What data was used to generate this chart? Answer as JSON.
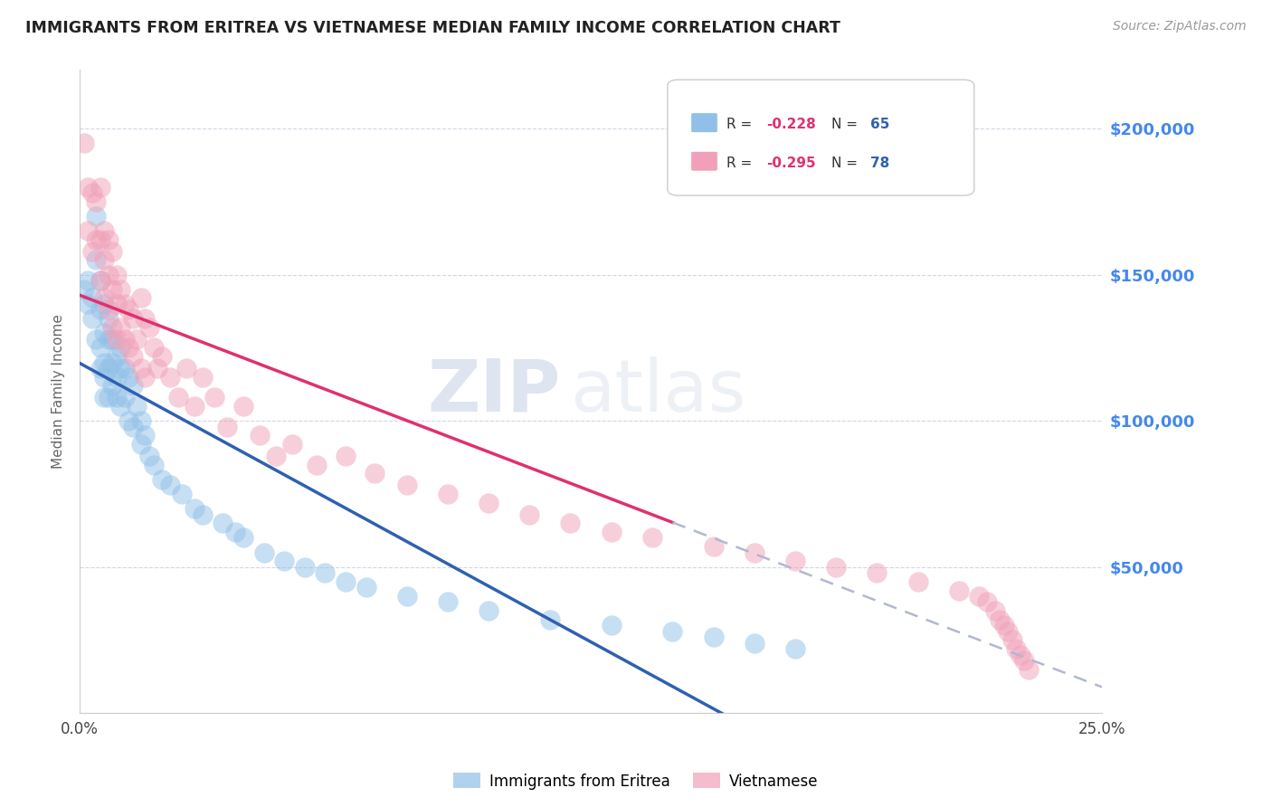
{
  "title": "IMMIGRANTS FROM ERITREA VS VIETNAMESE MEDIAN FAMILY INCOME CORRELATION CHART",
  "source": "Source: ZipAtlas.com",
  "ylabel": "Median Family Income",
  "right_yticklabels": [
    "",
    "$50,000",
    "$100,000",
    "$150,000",
    "$200,000"
  ],
  "legend_label1": "Immigrants from Eritrea",
  "legend_label2": "Vietnamese",
  "color_eritrea": "#90c0e8",
  "color_vietnamese": "#f0a0b8",
  "line_color_eritrea": "#3060b0",
  "line_color_vietnamese": "#e03070",
  "line_color_dashed": "#b0b8d0",
  "watermark_zip": "ZIP",
  "watermark_atlas": "atlas",
  "xlim": [
    0.0,
    0.25
  ],
  "ylim": [
    0,
    220000
  ],
  "eritrea_x": [
    0.001,
    0.002,
    0.002,
    0.003,
    0.003,
    0.004,
    0.004,
    0.004,
    0.005,
    0.005,
    0.005,
    0.005,
    0.006,
    0.006,
    0.006,
    0.006,
    0.006,
    0.007,
    0.007,
    0.007,
    0.007,
    0.008,
    0.008,
    0.008,
    0.009,
    0.009,
    0.009,
    0.01,
    0.01,
    0.01,
    0.011,
    0.011,
    0.012,
    0.012,
    0.013,
    0.013,
    0.014,
    0.015,
    0.015,
    0.016,
    0.017,
    0.018,
    0.02,
    0.022,
    0.025,
    0.028,
    0.03,
    0.035,
    0.038,
    0.04,
    0.045,
    0.05,
    0.055,
    0.06,
    0.065,
    0.07,
    0.08,
    0.09,
    0.1,
    0.115,
    0.13,
    0.145,
    0.155,
    0.165,
    0.175
  ],
  "eritrea_y": [
    145000,
    148000,
    140000,
    135000,
    142000,
    170000,
    155000,
    128000,
    148000,
    138000,
    125000,
    118000,
    140000,
    130000,
    120000,
    115000,
    108000,
    135000,
    128000,
    118000,
    108000,
    128000,
    120000,
    112000,
    122000,
    115000,
    108000,
    125000,
    118000,
    105000,
    118000,
    108000,
    115000,
    100000,
    112000,
    98000,
    105000,
    100000,
    92000,
    95000,
    88000,
    85000,
    80000,
    78000,
    75000,
    70000,
    68000,
    65000,
    62000,
    60000,
    55000,
    52000,
    50000,
    48000,
    45000,
    43000,
    40000,
    38000,
    35000,
    32000,
    30000,
    28000,
    26000,
    24000,
    22000
  ],
  "vietnamese_x": [
    0.001,
    0.002,
    0.002,
    0.003,
    0.003,
    0.004,
    0.004,
    0.005,
    0.005,
    0.005,
    0.006,
    0.006,
    0.006,
    0.007,
    0.007,
    0.007,
    0.008,
    0.008,
    0.008,
    0.009,
    0.009,
    0.009,
    0.01,
    0.01,
    0.011,
    0.011,
    0.012,
    0.012,
    0.013,
    0.013,
    0.014,
    0.015,
    0.015,
    0.016,
    0.016,
    0.017,
    0.018,
    0.019,
    0.02,
    0.022,
    0.024,
    0.026,
    0.028,
    0.03,
    0.033,
    0.036,
    0.04,
    0.044,
    0.048,
    0.052,
    0.058,
    0.065,
    0.072,
    0.08,
    0.09,
    0.1,
    0.11,
    0.12,
    0.13,
    0.14,
    0.155,
    0.165,
    0.175,
    0.185,
    0.195,
    0.205,
    0.215,
    0.22,
    0.222,
    0.224,
    0.225,
    0.226,
    0.227,
    0.228,
    0.229,
    0.23,
    0.231,
    0.232
  ],
  "vietnamese_y": [
    195000,
    180000,
    165000,
    178000,
    158000,
    175000,
    162000,
    180000,
    162000,
    148000,
    165000,
    155000,
    142000,
    162000,
    150000,
    138000,
    158000,
    145000,
    132000,
    150000,
    140000,
    128000,
    145000,
    132000,
    140000,
    128000,
    138000,
    125000,
    135000,
    122000,
    128000,
    142000,
    118000,
    135000,
    115000,
    132000,
    125000,
    118000,
    122000,
    115000,
    108000,
    118000,
    105000,
    115000,
    108000,
    98000,
    105000,
    95000,
    88000,
    92000,
    85000,
    88000,
    82000,
    78000,
    75000,
    72000,
    68000,
    65000,
    62000,
    60000,
    57000,
    55000,
    52000,
    50000,
    48000,
    45000,
    42000,
    40000,
    38000,
    35000,
    32000,
    30000,
    28000,
    25000,
    22000,
    20000,
    18000,
    15000
  ]
}
